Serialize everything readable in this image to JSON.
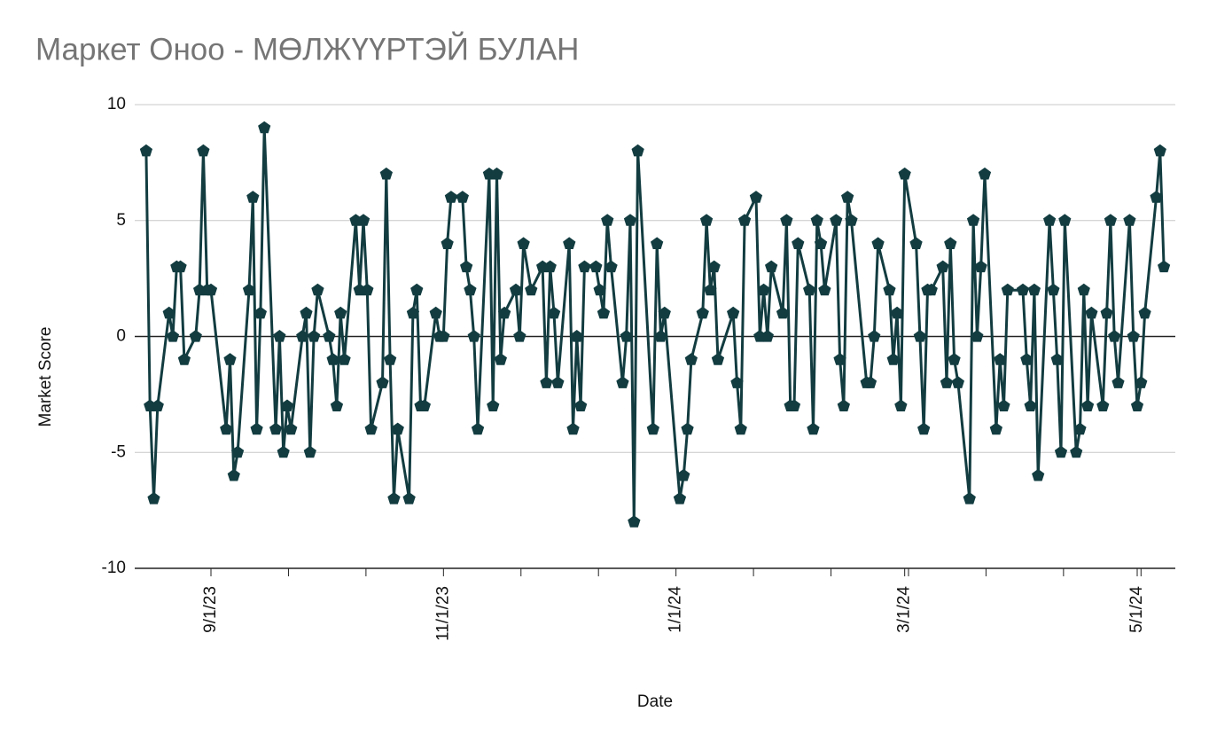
{
  "chart_data": {
    "type": "line",
    "title": "Маркет Оноо - МӨЛЖҮҮРТЭЙ БУЛАН",
    "x_label": "Date",
    "y_label": "Market Score",
    "x": [
      "8/15/23",
      "8/16/23",
      "8/17/23",
      "8/18/23",
      "8/21/23",
      "8/22/23",
      "8/23/23",
      "8/24/23",
      "8/25/23",
      "8/28/23",
      "8/29/23",
      "8/30/23",
      "8/31/23",
      "9/1/23",
      "9/5/23",
      "9/6/23",
      "9/7/23",
      "9/8/23",
      "9/11/23",
      "9/12/23",
      "9/13/23",
      "9/14/23",
      "9/15/23",
      "9/18/23",
      "9/19/23",
      "9/20/23",
      "9/21/23",
      "9/22/23",
      "9/25/23",
      "9/26/23",
      "9/27/23",
      "9/28/23",
      "9/29/23",
      "10/2/23",
      "10/3/23",
      "10/4/23",
      "10/5/23",
      "10/6/23",
      "10/9/23",
      "10/10/23",
      "10/11/23",
      "10/12/23",
      "10/13/23",
      "10/16/23",
      "10/17/23",
      "10/18/23",
      "10/19/23",
      "10/20/23",
      "10/23/23",
      "10/24/23",
      "10/25/23",
      "10/26/23",
      "10/27/23",
      "10/30/23",
      "10/31/23",
      "11/1/23",
      "11/2/23",
      "11/3/23",
      "11/6/23",
      "11/7/23",
      "11/8/23",
      "11/9/23",
      "11/10/23",
      "11/13/23",
      "11/14/23",
      "11/15/23",
      "11/16/23",
      "11/17/23",
      "11/20/23",
      "11/21/23",
      "11/22/23",
      "11/24/23",
      "11/27/23",
      "11/28/23",
      "11/29/23",
      "11/30/23",
      "12/1/23",
      "12/4/23",
      "12/5/23",
      "12/6/23",
      "12/7/23",
      "12/8/23",
      "12/11/23",
      "12/12/23",
      "12/13/23",
      "12/14/23",
      "12/15/23",
      "12/18/23",
      "12/19/23",
      "12/20/23",
      "12/21/23",
      "12/22/23",
      "12/26/23",
      "12/27/23",
      "12/28/23",
      "12/29/23",
      "1/2/24",
      "1/3/24",
      "1/4/24",
      "1/5/24",
      "1/8/24",
      "1/9/24",
      "1/10/24",
      "1/11/24",
      "1/12/24",
      "1/16/24",
      "1/17/24",
      "1/18/24",
      "1/19/24",
      "1/22/24",
      "1/23/24",
      "1/24/24",
      "1/25/24",
      "1/26/24",
      "1/29/24",
      "1/30/24",
      "1/31/24",
      "2/1/24",
      "2/2/24",
      "2/5/24",
      "2/6/24",
      "2/7/24",
      "2/8/24",
      "2/9/24",
      "2/12/24",
      "2/13/24",
      "2/14/24",
      "2/15/24",
      "2/16/24",
      "2/20/24",
      "2/21/24",
      "2/22/24",
      "2/23/24",
      "2/26/24",
      "2/27/24",
      "2/28/24",
      "2/29/24",
      "3/1/24",
      "3/4/24",
      "3/5/24",
      "3/6/24",
      "3/7/24",
      "3/8/24",
      "3/11/24",
      "3/12/24",
      "3/13/24",
      "3/14/24",
      "3/15/24",
      "3/18/24",
      "3/19/24",
      "3/20/24",
      "3/21/24",
      "3/22/24",
      "3/25/24",
      "3/26/24",
      "3/27/24",
      "3/28/24",
      "4/1/24",
      "4/2/24",
      "4/3/24",
      "4/4/24",
      "4/5/24",
      "4/8/24",
      "4/9/24",
      "4/10/24",
      "4/11/24",
      "4/12/24",
      "4/15/24",
      "4/16/24",
      "4/17/24",
      "4/18/24",
      "4/19/24",
      "4/22/24",
      "4/23/24",
      "4/24/24",
      "4/25/24",
      "4/26/24",
      "4/29/24",
      "4/30/24",
      "5/1/24",
      "5/2/24",
      "5/3/24",
      "5/6/24",
      "5/7/24",
      "5/8/24"
    ],
    "series": [
      {
        "name": "Market Score",
        "color": "#123c40",
        "values": [
          8,
          -3,
          -7,
          -3,
          1,
          0,
          3,
          3,
          -1,
          0,
          2,
          8,
          2,
          2,
          -4,
          -1,
          -6,
          -5,
          2,
          6,
          -4,
          1,
          9,
          -4,
          0,
          -5,
          -3,
          -4,
          0,
          1,
          -5,
          0,
          2,
          0,
          -1,
          -3,
          1,
          -1,
          5,
          2,
          5,
          2,
          -4,
          -2,
          7,
          -1,
          -7,
          -4,
          -7,
          1,
          2,
          -3,
          -3,
          1,
          0,
          0,
          4,
          6,
          6,
          3,
          2,
          0,
          -4,
          7,
          -3,
          7,
          -1,
          1,
          2,
          0,
          4,
          2,
          3,
          -2,
          3,
          1,
          -2,
          4,
          -4,
          0,
          -3,
          3,
          3,
          2,
          1,
          5,
          3,
          -2,
          0,
          5,
          -8,
          8,
          -4,
          4,
          0,
          1,
          -7,
          -6,
          -4,
          -1,
          1,
          5,
          2,
          3,
          -1,
          1,
          -2,
          -4,
          5,
          6,
          0,
          2,
          0,
          3,
          1,
          5,
          -3,
          -3,
          4,
          2,
          -4,
          5,
          4,
          2,
          5,
          -1,
          -3,
          6,
          5,
          -2,
          -2,
          0,
          4,
          2,
          -1,
          1,
          -3,
          7,
          4,
          0,
          -4,
          2,
          2,
          3,
          -2,
          4,
          -1,
          -2,
          -7,
          5,
          0,
          3,
          7,
          -4,
          -1,
          -3,
          2,
          2,
          -1,
          -3,
          2,
          -6,
          5,
          2,
          -1,
          -5,
          5,
          -5,
          -4,
          2,
          -3,
          1,
          -3,
          1,
          5,
          0,
          -2,
          5,
          0,
          -3,
          -2,
          1,
          6,
          8,
          3
        ]
      }
    ],
    "xlim": [
      "8/12/23",
      "5/11/24"
    ],
    "xticks": [
      "9/1/23",
      "11/1/23",
      "1/1/24",
      "3/1/24",
      "5/1/24"
    ],
    "ylim": [
      -10,
      10
    ],
    "yticks": [
      -10,
      -5,
      0,
      5,
      10
    ],
    "grid": true
  }
}
